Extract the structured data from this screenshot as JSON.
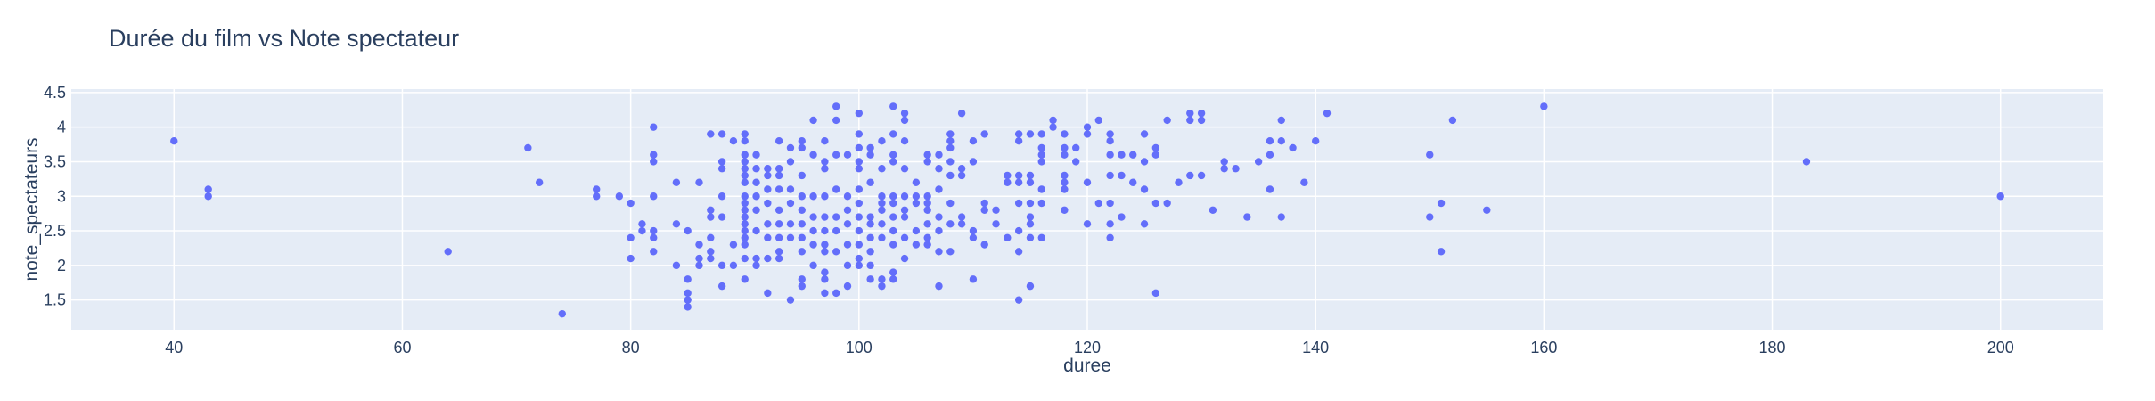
{
  "chart_data": {
    "type": "scatter",
    "title": "Durée du film vs Note spectateur",
    "xlabel": "duree",
    "ylabel": "note_spectateurs",
    "xlim": [
      31,
      209
    ],
    "ylim": [
      1.07,
      4.55
    ],
    "xticks": [
      "40",
      "60",
      "80",
      "100",
      "120",
      "140",
      "160",
      "180",
      "200"
    ],
    "yticks": [
      "1.5",
      "2",
      "2.5",
      "3",
      "3.5",
      "4",
      "4.5"
    ],
    "grid": true,
    "legend": "none",
    "colors": {
      "marker": "#636efa",
      "plot_bg": "#e5ecf6",
      "paper_bg": "#ffffff",
      "text": "#2a3f5f"
    },
    "points": [
      [
        40,
        3.8
      ],
      [
        43,
        3.1
      ],
      [
        43,
        3.0
      ],
      [
        64,
        2.2
      ],
      [
        71,
        3.7
      ],
      [
        72,
        3.2
      ],
      [
        74,
        1.3
      ],
      [
        77,
        3.1
      ],
      [
        77,
        3.0
      ],
      [
        79,
        3.0
      ],
      [
        80,
        2.9
      ],
      [
        80,
        2.4
      ],
      [
        80,
        2.1
      ],
      [
        81,
        2.6
      ],
      [
        81,
        2.5
      ],
      [
        82,
        4.0
      ],
      [
        82,
        3.6
      ],
      [
        82,
        3.5
      ],
      [
        82,
        3.0
      ],
      [
        82,
        2.5
      ],
      [
        82,
        2.4
      ],
      [
        82,
        2.2
      ],
      [
        84,
        3.2
      ],
      [
        84,
        2.6
      ],
      [
        84,
        2.0
      ],
      [
        85,
        2.5
      ],
      [
        85,
        1.8
      ],
      [
        85,
        1.6
      ],
      [
        85,
        1.5
      ],
      [
        85,
        1.4
      ],
      [
        86,
        3.2
      ],
      [
        86,
        2.3
      ],
      [
        86,
        2.1
      ],
      [
        86,
        2.0
      ],
      [
        87,
        3.9
      ],
      [
        87,
        2.8
      ],
      [
        87,
        2.7
      ],
      [
        87,
        2.4
      ],
      [
        87,
        2.2
      ],
      [
        87,
        2.1
      ],
      [
        88,
        3.9
      ],
      [
        88,
        3.5
      ],
      [
        88,
        3.4
      ],
      [
        88,
        3.0
      ],
      [
        88,
        2.7
      ],
      [
        88,
        2.0
      ],
      [
        88,
        1.7
      ],
      [
        89,
        3.8
      ],
      [
        89,
        2.3
      ],
      [
        89,
        2.0
      ],
      [
        90,
        3.9
      ],
      [
        90,
        3.8
      ],
      [
        90,
        3.6
      ],
      [
        90,
        3.5
      ],
      [
        90,
        3.4
      ],
      [
        90,
        3.3
      ],
      [
        90,
        3.2
      ],
      [
        90,
        3.0
      ],
      [
        90,
        2.9
      ],
      [
        90,
        2.8
      ],
      [
        90,
        2.7
      ],
      [
        90,
        2.6
      ],
      [
        90,
        2.5
      ],
      [
        90,
        2.4
      ],
      [
        90,
        2.3
      ],
      [
        90,
        2.1
      ],
      [
        90,
        1.8
      ],
      [
        91,
        3.6
      ],
      [
        91,
        3.4
      ],
      [
        91,
        3.2
      ],
      [
        91,
        3.0
      ],
      [
        91,
        2.8
      ],
      [
        91,
        2.5
      ],
      [
        91,
        2.1
      ],
      [
        91,
        2.0
      ],
      [
        92,
        3.4
      ],
      [
        92,
        3.3
      ],
      [
        92,
        3.1
      ],
      [
        92,
        2.9
      ],
      [
        92,
        2.6
      ],
      [
        92,
        2.4
      ],
      [
        92,
        2.1
      ],
      [
        92,
        1.6
      ],
      [
        93,
        3.8
      ],
      [
        93,
        3.4
      ],
      [
        93,
        3.3
      ],
      [
        93,
        3.1
      ],
      [
        93,
        2.8
      ],
      [
        93,
        2.6
      ],
      [
        93,
        2.4
      ],
      [
        93,
        2.2
      ],
      [
        93,
        2.1
      ],
      [
        94,
        3.7
      ],
      [
        94,
        3.5
      ],
      [
        94,
        3.1
      ],
      [
        94,
        2.9
      ],
      [
        94,
        2.6
      ],
      [
        94,
        2.4
      ],
      [
        94,
        1.5
      ],
      [
        95,
        3.8
      ],
      [
        95,
        3.7
      ],
      [
        95,
        3.3
      ],
      [
        95,
        3.0
      ],
      [
        95,
        2.8
      ],
      [
        95,
        2.6
      ],
      [
        95,
        2.4
      ],
      [
        95,
        2.2
      ],
      [
        95,
        1.8
      ],
      [
        95,
        1.7
      ],
      [
        96,
        4.1
      ],
      [
        96,
        3.6
      ],
      [
        96,
        3.0
      ],
      [
        96,
        2.7
      ],
      [
        96,
        2.5
      ],
      [
        96,
        2.3
      ],
      [
        96,
        2.0
      ],
      [
        97,
        3.8
      ],
      [
        97,
        3.5
      ],
      [
        97,
        3.4
      ],
      [
        97,
        3.0
      ],
      [
        97,
        2.7
      ],
      [
        97,
        2.5
      ],
      [
        97,
        2.3
      ],
      [
        97,
        2.2
      ],
      [
        97,
        1.9
      ],
      [
        97,
        1.8
      ],
      [
        97,
        1.6
      ],
      [
        98,
        4.3
      ],
      [
        98,
        4.1
      ],
      [
        98,
        3.6
      ],
      [
        98,
        3.1
      ],
      [
        98,
        2.7
      ],
      [
        98,
        2.5
      ],
      [
        98,
        2.2
      ],
      [
        98,
        1.6
      ],
      [
        99,
        3.6
      ],
      [
        99,
        3.0
      ],
      [
        99,
        2.8
      ],
      [
        99,
        2.6
      ],
      [
        99,
        2.3
      ],
      [
        99,
        2.0
      ],
      [
        99,
        1.7
      ],
      [
        100,
        4.2
      ],
      [
        100,
        3.9
      ],
      [
        100,
        3.7
      ],
      [
        100,
        3.5
      ],
      [
        100,
        3.4
      ],
      [
        100,
        3.1
      ],
      [
        100,
        2.9
      ],
      [
        100,
        2.7
      ],
      [
        100,
        2.5
      ],
      [
        100,
        2.3
      ],
      [
        100,
        2.1
      ],
      [
        100,
        2.0
      ],
      [
        101,
        3.7
      ],
      [
        101,
        3.6
      ],
      [
        101,
        3.2
      ],
      [
        101,
        2.7
      ],
      [
        101,
        2.6
      ],
      [
        101,
        2.4
      ],
      [
        101,
        2.2
      ],
      [
        101,
        2.0
      ],
      [
        101,
        1.8
      ],
      [
        102,
        3.8
      ],
      [
        102,
        3.4
      ],
      [
        102,
        3.0
      ],
      [
        102,
        2.9
      ],
      [
        102,
        2.8
      ],
      [
        102,
        2.6
      ],
      [
        102,
        2.4
      ],
      [
        102,
        1.8
      ],
      [
        102,
        1.7
      ],
      [
        103,
        4.3
      ],
      [
        103,
        3.9
      ],
      [
        103,
        3.6
      ],
      [
        103,
        3.5
      ],
      [
        103,
        3.0
      ],
      [
        103,
        2.9
      ],
      [
        103,
        2.7
      ],
      [
        103,
        2.5
      ],
      [
        103,
        2.3
      ],
      [
        103,
        1.9
      ],
      [
        103,
        1.8
      ],
      [
        104,
        4.2
      ],
      [
        104,
        4.1
      ],
      [
        104,
        3.8
      ],
      [
        104,
        3.4
      ],
      [
        104,
        3.0
      ],
      [
        104,
        2.8
      ],
      [
        104,
        2.7
      ],
      [
        104,
        2.4
      ],
      [
        104,
        2.1
      ],
      [
        105,
        3.2
      ],
      [
        105,
        3.0
      ],
      [
        105,
        2.9
      ],
      [
        105,
        2.5
      ],
      [
        105,
        2.3
      ],
      [
        106,
        3.6
      ],
      [
        106,
        3.5
      ],
      [
        106,
        3.0
      ],
      [
        106,
        2.9
      ],
      [
        106,
        2.8
      ],
      [
        106,
        2.6
      ],
      [
        106,
        2.4
      ],
      [
        106,
        2.3
      ],
      [
        107,
        3.6
      ],
      [
        107,
        3.4
      ],
      [
        107,
        3.1
      ],
      [
        107,
        2.7
      ],
      [
        107,
        2.5
      ],
      [
        107,
        2.2
      ],
      [
        107,
        1.7
      ],
      [
        108,
        3.9
      ],
      [
        108,
        3.8
      ],
      [
        108,
        3.7
      ],
      [
        108,
        3.5
      ],
      [
        108,
        3.3
      ],
      [
        108,
        2.9
      ],
      [
        108,
        2.6
      ],
      [
        108,
        2.2
      ],
      [
        109,
        4.2
      ],
      [
        109,
        3.4
      ],
      [
        109,
        3.3
      ],
      [
        109,
        2.7
      ],
      [
        109,
        2.6
      ],
      [
        110,
        3.8
      ],
      [
        110,
        3.5
      ],
      [
        110,
        2.5
      ],
      [
        110,
        2.4
      ],
      [
        110,
        1.8
      ],
      [
        111,
        3.9
      ],
      [
        111,
        2.9
      ],
      [
        111,
        2.8
      ],
      [
        111,
        2.3
      ],
      [
        112,
        2.8
      ],
      [
        112,
        2.6
      ],
      [
        113,
        3.3
      ],
      [
        113,
        3.2
      ],
      [
        113,
        2.4
      ],
      [
        114,
        3.9
      ],
      [
        114,
        3.8
      ],
      [
        114,
        3.3
      ],
      [
        114,
        3.2
      ],
      [
        114,
        2.9
      ],
      [
        114,
        2.5
      ],
      [
        114,
        2.2
      ],
      [
        114,
        1.5
      ],
      [
        115,
        3.9
      ],
      [
        115,
        3.3
      ],
      [
        115,
        3.2
      ],
      [
        115,
        2.9
      ],
      [
        115,
        2.7
      ],
      [
        115,
        2.6
      ],
      [
        115,
        2.4
      ],
      [
        115,
        1.7
      ],
      [
        116,
        3.9
      ],
      [
        116,
        3.7
      ],
      [
        116,
        3.6
      ],
      [
        116,
        3.5
      ],
      [
        116,
        3.1
      ],
      [
        116,
        2.9
      ],
      [
        116,
        2.4
      ],
      [
        117,
        4.1
      ],
      [
        117,
        4.0
      ],
      [
        118,
        3.9
      ],
      [
        118,
        3.7
      ],
      [
        118,
        3.6
      ],
      [
        118,
        3.3
      ],
      [
        118,
        3.2
      ],
      [
        118,
        3.1
      ],
      [
        118,
        2.8
      ],
      [
        119,
        3.7
      ],
      [
        119,
        3.5
      ],
      [
        120,
        4.0
      ],
      [
        120,
        3.9
      ],
      [
        120,
        3.2
      ],
      [
        120,
        2.6
      ],
      [
        121,
        4.1
      ],
      [
        121,
        2.9
      ],
      [
        122,
        3.9
      ],
      [
        122,
        3.8
      ],
      [
        122,
        3.6
      ],
      [
        122,
        3.3
      ],
      [
        122,
        2.9
      ],
      [
        122,
        2.6
      ],
      [
        122,
        2.4
      ],
      [
        123,
        3.6
      ],
      [
        123,
        3.3
      ],
      [
        123,
        2.7
      ],
      [
        124,
        3.6
      ],
      [
        124,
        3.2
      ],
      [
        125,
        3.9
      ],
      [
        125,
        3.5
      ],
      [
        125,
        3.1
      ],
      [
        125,
        2.6
      ],
      [
        126,
        3.7
      ],
      [
        126,
        3.6
      ],
      [
        126,
        2.9
      ],
      [
        126,
        1.6
      ],
      [
        127,
        4.1
      ],
      [
        127,
        2.9
      ],
      [
        128,
        3.2
      ],
      [
        129,
        4.2
      ],
      [
        129,
        4.1
      ],
      [
        129,
        3.3
      ],
      [
        130,
        4.2
      ],
      [
        130,
        4.1
      ],
      [
        130,
        3.3
      ],
      [
        131,
        2.8
      ],
      [
        132,
        3.5
      ],
      [
        132,
        3.4
      ],
      [
        133,
        3.4
      ],
      [
        134,
        2.7
      ],
      [
        135,
        3.5
      ],
      [
        136,
        3.8
      ],
      [
        136,
        3.6
      ],
      [
        136,
        3.1
      ],
      [
        137,
        4.1
      ],
      [
        137,
        3.8
      ],
      [
        137,
        2.7
      ],
      [
        138,
        3.7
      ],
      [
        139,
        3.2
      ],
      [
        140,
        3.8
      ],
      [
        141,
        4.2
      ],
      [
        150,
        3.6
      ],
      [
        150,
        2.7
      ],
      [
        151,
        2.9
      ],
      [
        151,
        2.2
      ],
      [
        152,
        4.1
      ],
      [
        155,
        2.8
      ],
      [
        160,
        4.3
      ],
      [
        183,
        3.5
      ],
      [
        200,
        3.0
      ]
    ]
  }
}
